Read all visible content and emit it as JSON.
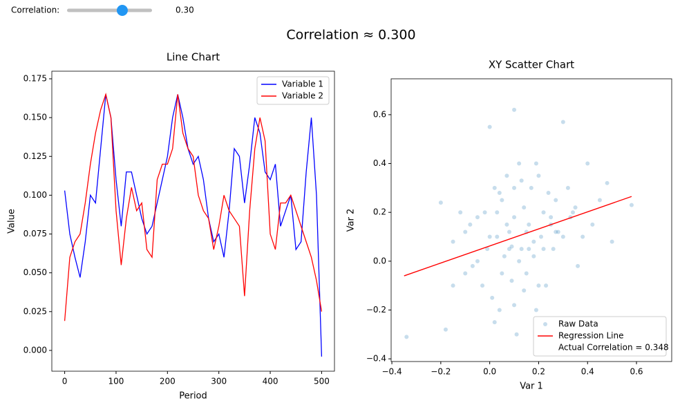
{
  "controls": {
    "slider": {
      "name": "Correlation:",
      "value": 0.3,
      "label": "0.30",
      "range": [
        -1,
        1
      ]
    }
  },
  "title": "Correlation ≈ 0.300",
  "chart_data": [
    {
      "type": "line",
      "title": "Line Chart",
      "x_label": "Period",
      "y_label": "Value",
      "x": [
        0,
        10,
        20,
        30,
        40,
        50,
        60,
        70,
        80,
        90,
        100,
        110,
        120,
        130,
        140,
        150,
        160,
        170,
        180,
        190,
        200,
        210,
        220,
        230,
        240,
        250,
        260,
        270,
        280,
        290,
        300,
        310,
        320,
        330,
        340,
        350,
        360,
        370,
        380,
        390,
        400,
        410,
        420,
        430,
        440,
        450,
        460,
        470,
        480,
        490,
        500
      ],
      "series": [
        {
          "name": "Variable 1",
          "color": "#0000ff",
          "values": [
            0.103,
            0.075,
            0.06,
            0.047,
            0.07,
            0.1,
            0.095,
            0.13,
            0.165,
            0.15,
            0.11,
            0.08,
            0.115,
            0.115,
            0.1,
            0.085,
            0.075,
            0.08,
            0.095,
            0.11,
            0.125,
            0.15,
            0.165,
            0.15,
            0.13,
            0.12,
            0.125,
            0.11,
            0.085,
            0.07,
            0.075,
            0.06,
            0.09,
            0.13,
            0.125,
            0.095,
            0.12,
            0.15,
            0.14,
            0.115,
            0.11,
            0.12,
            0.08,
            0.09,
            0.1,
            0.065,
            0.07,
            0.115,
            0.15,
            0.1,
            -0.004
          ]
        },
        {
          "name": "Variable 2",
          "color": "#ff0000",
          "values": [
            0.019,
            0.06,
            0.07,
            0.075,
            0.095,
            0.12,
            0.14,
            0.155,
            0.165,
            0.15,
            0.09,
            0.055,
            0.085,
            0.105,
            0.09,
            0.095,
            0.065,
            0.06,
            0.11,
            0.12,
            0.12,
            0.13,
            0.165,
            0.14,
            0.13,
            0.125,
            0.1,
            0.09,
            0.085,
            0.065,
            0.08,
            0.1,
            0.09,
            0.085,
            0.08,
            0.035,
            0.09,
            0.13,
            0.15,
            0.135,
            0.075,
            0.065,
            0.095,
            0.095,
            0.1,
            0.09,
            0.08,
            0.07,
            0.06,
            0.045,
            0.025
          ]
        }
      ],
      "xlim": [
        -25,
        525
      ],
      "xticks": [
        0,
        100,
        200,
        300,
        400,
        500
      ],
      "ylim": [
        -0.0134,
        0.1799
      ],
      "yticks": [
        {
          "value": 0,
          "label": "0.000"
        },
        {
          "value": 0.025,
          "label": "0.025"
        },
        {
          "value": 0.05,
          "label": "0.050"
        },
        {
          "value": 0.075,
          "label": "0.075"
        },
        {
          "value": 0.1,
          "label": "0.100"
        },
        {
          "value": 0.125,
          "label": "0.125"
        },
        {
          "value": 0.15,
          "label": "0.150"
        },
        {
          "value": 0.175,
          "label": "0.175"
        }
      ],
      "legend": "upper right"
    },
    {
      "type": "scatter",
      "title": "XY Scatter Chart",
      "x_label": "Var 1",
      "y_label": "Var 2",
      "series": [
        {
          "name": "Raw Data",
          "type": "scatter",
          "color": "#1f77b4",
          "x": [
            -0.34,
            -0.2,
            -0.18,
            -0.15,
            -0.12,
            -0.1,
            -0.08,
            -0.05,
            -0.03,
            -0.01,
            0,
            0.01,
            0.02,
            0.03,
            0.04,
            0.05,
            0.06,
            0.07,
            0.08,
            0.09,
            0.1,
            0.1,
            0.11,
            0.12,
            0.13,
            0.14,
            0.15,
            0.16,
            0.17,
            0.18,
            0.19,
            0.2,
            0.21,
            0.22,
            0.23,
            0.24,
            0.25,
            0.26,
            0.27,
            0.28,
            0.3,
            0.32,
            0.34,
            0.36,
            0.38,
            0.4,
            0.42,
            0.45,
            0.48,
            0.5,
            0.58,
            0.12,
            0.02,
            -0.05,
            0.08,
            0.15,
            0.2,
            0.25,
            0.05,
            -0.1,
            0,
            0.1,
            0.3,
            0.18,
            0.07,
            -0.15,
            -0.02,
            0.13,
            0.22,
            0.35,
            0.1,
            0.04,
            0.16,
            0.27,
            -0.07,
            0.09,
            0.19,
            0.33,
            0.03,
            0.14
          ],
          "values": [
            -0.31,
            0.24,
            -0.28,
            0.08,
            0.2,
            -0.05,
            0.15,
            0,
            -0.1,
            0.05,
            0.55,
            -0.15,
            0.3,
            0.1,
            -0.2,
            0.25,
            0.02,
            0.35,
            0.12,
            -0.08,
            0.62,
            0.18,
            -0.3,
            0.4,
            0.05,
            0.22,
            -0.05,
            0.15,
            0.3,
            0.08,
            -0.2,
            0.35,
            0.1,
            0.2,
            -0.1,
            0.28,
            0.15,
            0.05,
            0.25,
            0.12,
            0.57,
            0.3,
            0.2,
            -0.02,
            0.1,
            0.4,
            0.15,
            0.25,
            0.32,
            0.08,
            0.23,
            0,
            -0.25,
            0.18,
            0.05,
            0.12,
            -0.1,
            0.18,
            -0.05,
            0.12,
            0.1,
            0.3,
            0.1,
            0.02,
            0.15,
            -0.1,
            0.2,
            0.33,
            0.05,
            0.22,
            -0.18,
            0.28,
            0.05,
            0.12,
            -0.02,
            0.06,
            0.4,
            0.18,
            0.2,
            -0.12
          ]
        },
        {
          "name": "Regression Line",
          "type": "line",
          "color": "#ff0000",
          "x": [
            -0.35,
            0.58
          ],
          "values": [
            -0.06,
            0.265
          ]
        }
      ],
      "annotation": "Actual Correlation = 0.348",
      "xlim": [
        -0.403,
        0.744
      ],
      "xticks": [
        {
          "value": -0.4,
          "label": "−0.4"
        },
        {
          "value": -0.2,
          "label": "−0.2"
        },
        {
          "value": 0,
          "label": "0.0"
        },
        {
          "value": 0.2,
          "label": "0.2"
        },
        {
          "value": 0.4,
          "label": "0.4"
        },
        {
          "value": 0.6,
          "label": "0.6"
        }
      ],
      "ylim": [
        -0.411,
        0.747
      ],
      "yticks": [
        {
          "value": -0.4,
          "label": "−0.4"
        },
        {
          "value": -0.2,
          "label": "−0.2"
        },
        {
          "value": 0,
          "label": "0.0"
        },
        {
          "value": 0.2,
          "label": "0.2"
        },
        {
          "value": 0.4,
          "label": "0.4"
        },
        {
          "value": 0.6,
          "label": "0.6"
        }
      ],
      "legend": "lower right"
    }
  ]
}
